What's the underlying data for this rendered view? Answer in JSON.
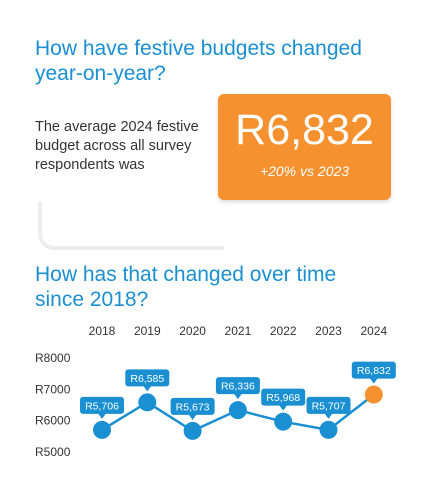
{
  "headline": "How have festive budgets changed year-on-year?",
  "intro_text": "The average 2024 festive budget across all survey respondents was",
  "callout": {
    "value": "R6,832",
    "change": "+20% vs 2023"
  },
  "chart_heading": "How has that changed over time since 2018?",
  "colors": {
    "accent_blue": "#1a8fd1",
    "highlight_orange": "#f5922f",
    "label_blue": "#1a8fd1"
  },
  "chart_data": {
    "type": "line",
    "title": "How has that changed over time since 2018?",
    "x": [
      "2018",
      "2019",
      "2020",
      "2021",
      "2022",
      "2023",
      "2024"
    ],
    "values": [
      5706,
      6585,
      5673,
      6336,
      5968,
      5707,
      6832
    ],
    "data_labels": [
      "R5,706",
      "R6,585",
      "R5,673",
      "R6,336",
      "R5,968",
      "R5,707",
      "R6,832"
    ],
    "x_axis_position": "top",
    "ylim": [
      5000,
      8000
    ],
    "yticks": [
      {
        "value": 8000,
        "label": "R8000"
      },
      {
        "value": 7000,
        "label": "R7000"
      },
      {
        "value": 6000,
        "label": "R6000"
      },
      {
        "value": 5000,
        "label": "R5000"
      }
    ],
    "grid": false,
    "highlight": "2024"
  }
}
